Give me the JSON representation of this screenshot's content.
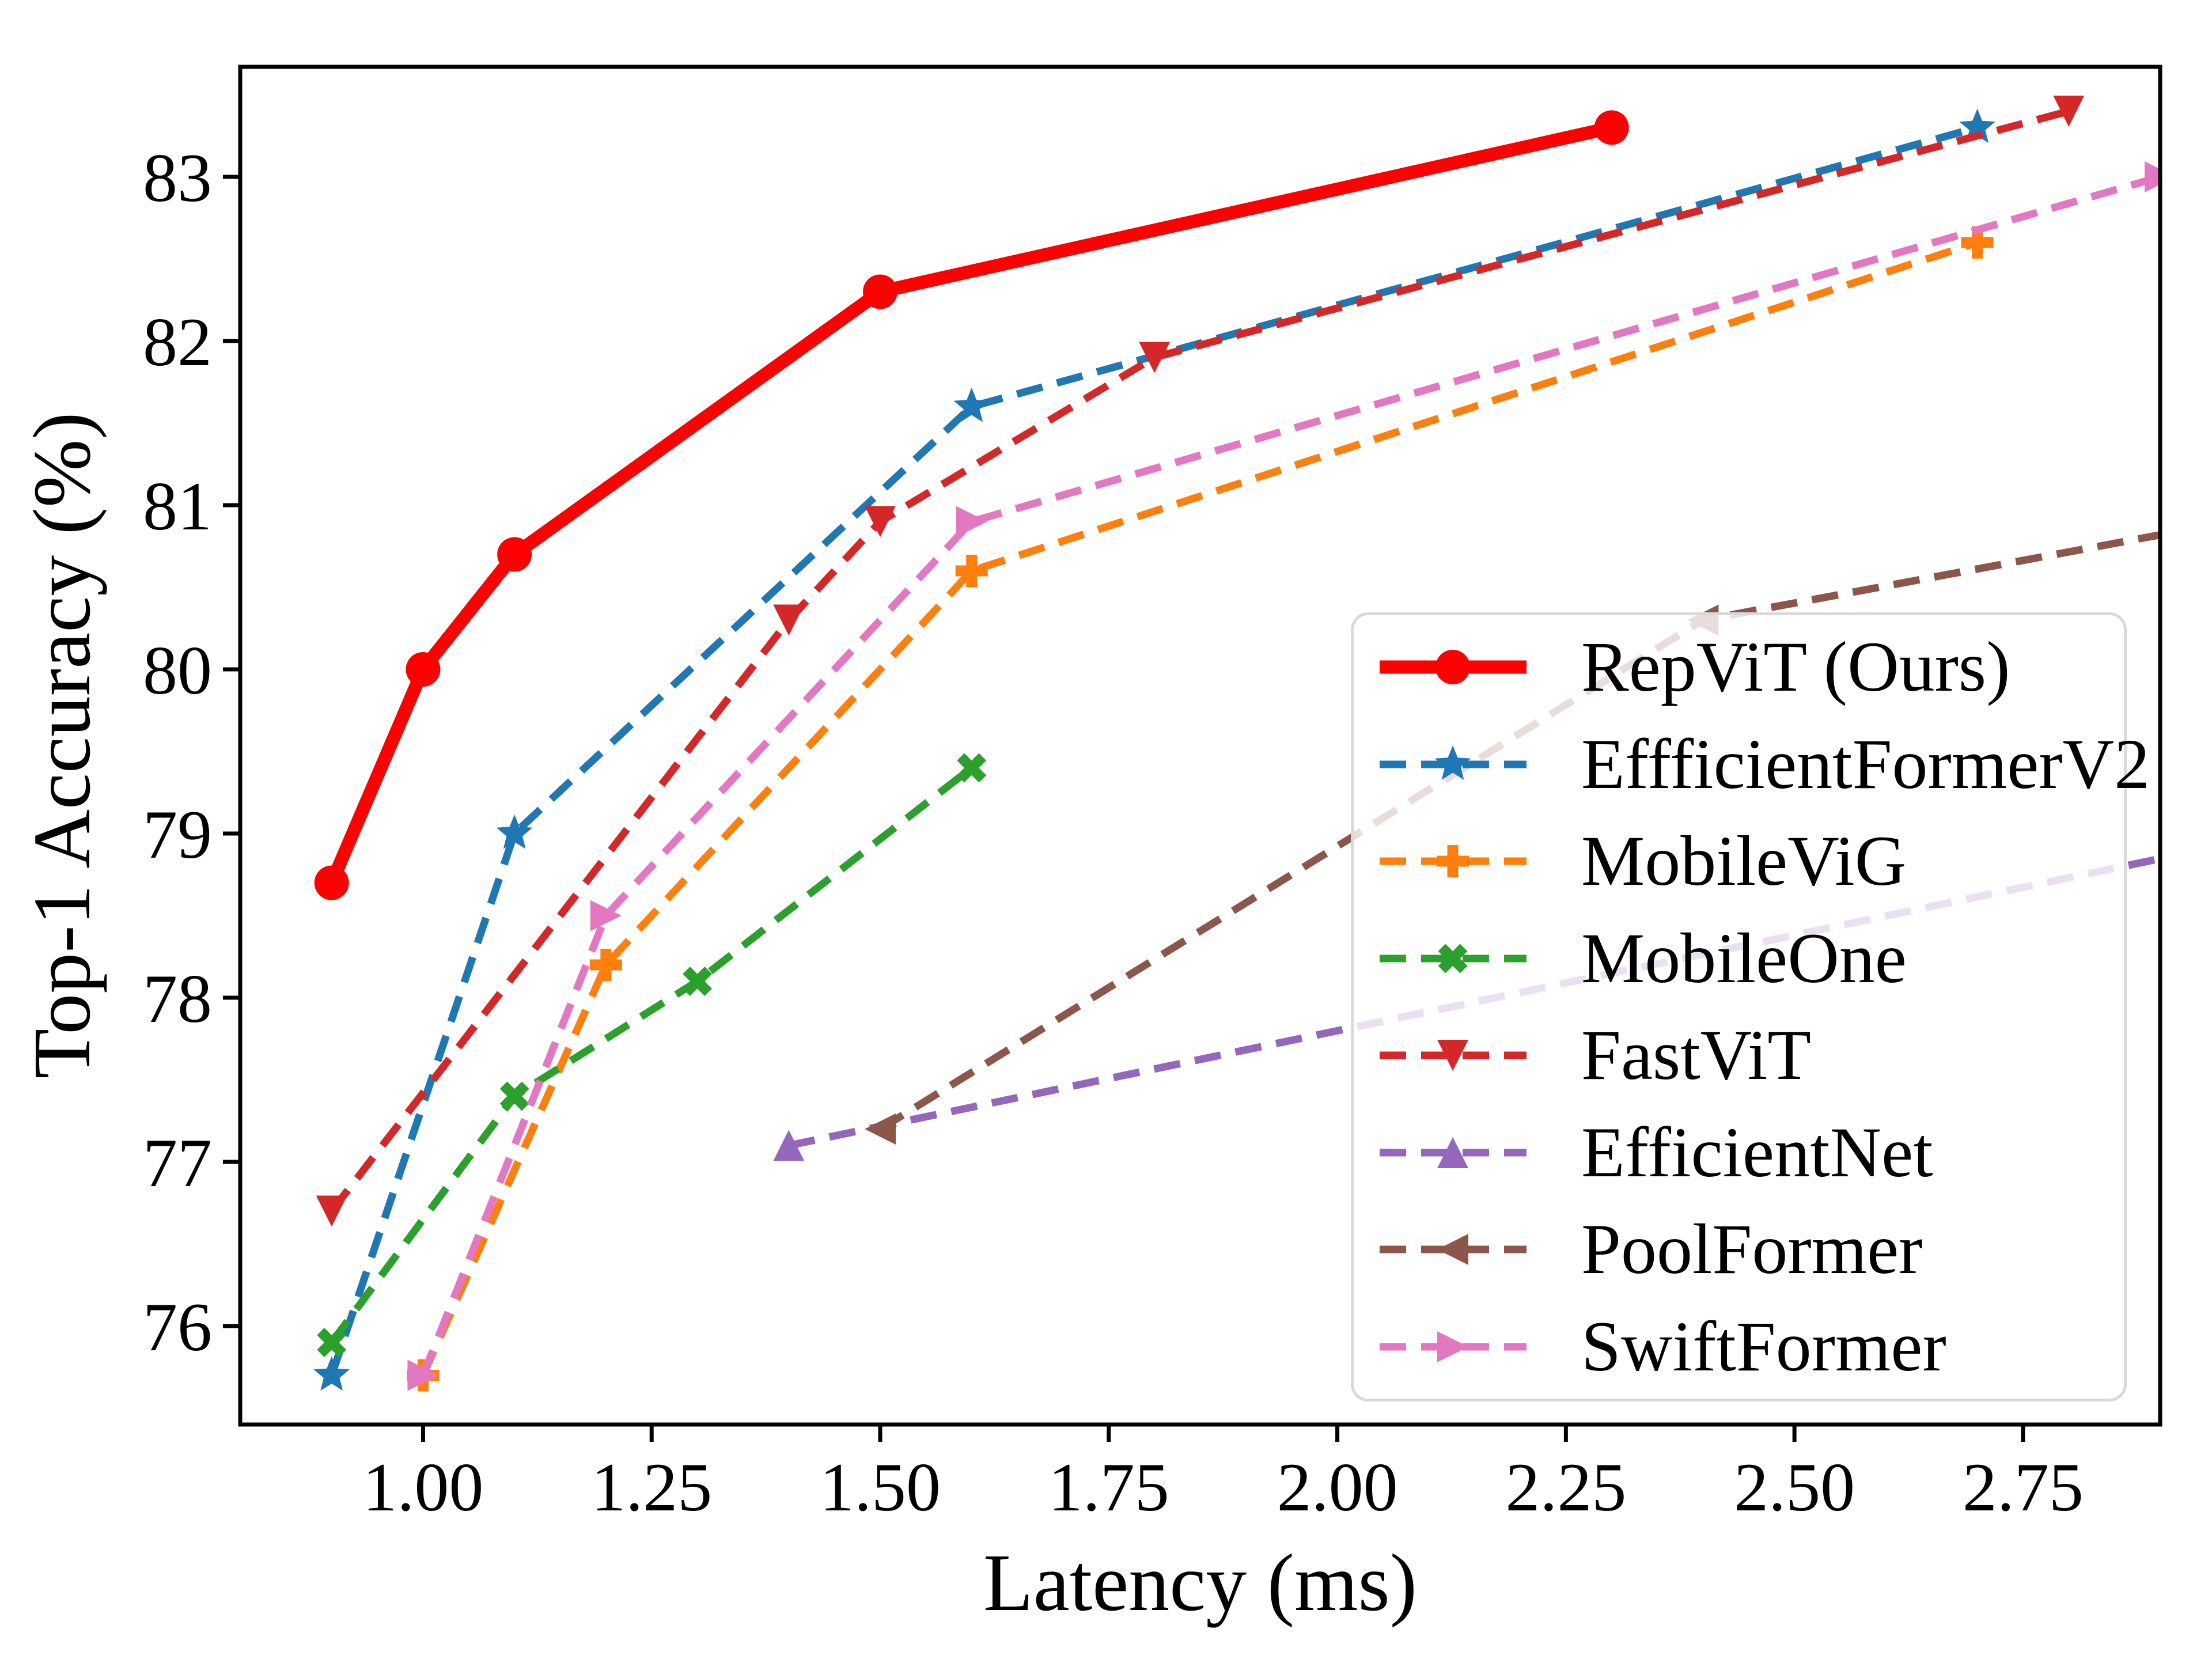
{
  "chart_data": {
    "type": "line",
    "title": "",
    "xlabel": "Latency (ms)",
    "ylabel": "Top-1 Accuracy (%)",
    "xlim": [
      0.8,
      2.9
    ],
    "ylim": [
      75.4,
      83.67
    ],
    "x_ticks": [
      1.0,
      1.25,
      1.5,
      1.75,
      2.0,
      2.25,
      2.5,
      2.75
    ],
    "x_tick_labels": [
      "1.00",
      "1.25",
      "1.50",
      "1.75",
      "2.00",
      "2.25",
      "2.50",
      "2.75"
    ],
    "y_ticks": [
      76,
      77,
      78,
      79,
      80,
      81,
      82,
      83
    ],
    "y_tick_labels": [
      "76",
      "77",
      "78",
      "79",
      "80",
      "81",
      "82",
      "83"
    ],
    "grid": false,
    "axis_color": "#000000",
    "legend": {
      "position": "lower right",
      "frame": true,
      "border_color": "#d9d9d9",
      "background": "rgba(255,255,255,0.8)"
    },
    "series": [
      {
        "name": "RepViT (Ours)",
        "color": "#ff0000",
        "line_style": "solid",
        "marker": "circle",
        "points": [
          [
            0.9,
            78.7
          ],
          [
            1.0,
            80.0
          ],
          [
            1.1,
            80.7
          ],
          [
            1.5,
            82.3
          ],
          [
            2.3,
            83.3
          ]
        ]
      },
      {
        "name": "EffficientFormerV2",
        "color": "#1f77b4",
        "line_style": "dashed",
        "marker": "star",
        "points": [
          [
            0.9,
            75.7
          ],
          [
            1.1,
            79.0
          ],
          [
            1.6,
            81.6
          ],
          [
            2.7,
            83.3
          ]
        ]
      },
      {
        "name": "MobileViG",
        "color": "#ff7f0e",
        "line_style": "dashed",
        "marker": "plus",
        "points": [
          [
            1.0,
            75.7
          ],
          [
            1.2,
            78.2
          ],
          [
            1.6,
            80.6
          ],
          [
            2.7,
            82.6
          ]
        ]
      },
      {
        "name": "MobileOne",
        "color": "#2ca02c",
        "line_style": "dashed",
        "marker": "x",
        "points": [
          [
            0.9,
            75.9
          ],
          [
            1.1,
            77.4
          ],
          [
            1.3,
            78.1
          ],
          [
            1.6,
            79.4
          ]
        ]
      },
      {
        "name": "FastViT",
        "color": "#d62728",
        "line_style": "dashed",
        "marker": "triangle-down",
        "points": [
          [
            0.9,
            76.7
          ],
          [
            1.4,
            80.3
          ],
          [
            1.5,
            80.9
          ],
          [
            1.8,
            81.9
          ],
          [
            2.8,
            83.4
          ]
        ]
      },
      {
        "name": "EfficientNet",
        "color": "#9467bd",
        "line_style": "dashed",
        "marker": "triangle-up",
        "points": [
          [
            1.4,
            77.1
          ],
          [
            2.92,
            78.87
          ]
        ],
        "marker_at": [
          true,
          false
        ]
      },
      {
        "name": "PoolFormer",
        "color": "#8c564b",
        "line_style": "dashed",
        "marker": "triangle-left",
        "points": [
          [
            1.5,
            77.2
          ],
          [
            2.4,
            80.3
          ],
          [
            2.92,
            80.84
          ]
        ],
        "marker_at": [
          true,
          true,
          false
        ]
      },
      {
        "name": "SwiftFormer",
        "color": "#e377c2",
        "line_style": "dashed",
        "marker": "triangle-right",
        "points": [
          [
            1.0,
            75.7
          ],
          [
            1.2,
            78.5
          ],
          [
            1.6,
            80.9
          ],
          [
            2.9,
            83.0
          ]
        ]
      }
    ]
  }
}
